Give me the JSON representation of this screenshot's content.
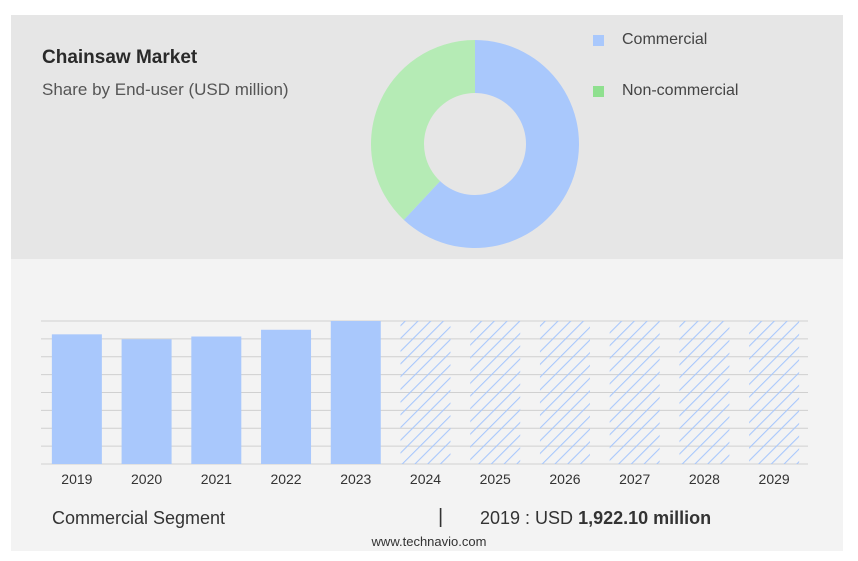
{
  "header": {
    "title": "Chainsaw Market",
    "subtitle": "Share by End-user (USD million)"
  },
  "colors": {
    "commercial": "#a9c8fc",
    "non_commercial": "#b5ebb5",
    "forecast_hatch": "#a9c8fc",
    "grid": "#d0d0d0"
  },
  "legend": [
    {
      "label": "Commercial",
      "color": "#a9c8fc"
    },
    {
      "label": "Non-commercial",
      "color": "#8fe08f"
    }
  ],
  "summary": {
    "segment": "Commercial Segment",
    "separator": "|",
    "prefix": "2019 : USD ",
    "value": "1,922.10 million"
  },
  "footer": "www.technavio.com",
  "chart_data": [
    {
      "type": "pie",
      "donut": true,
      "categories": [
        "Commercial",
        "Non-commercial"
      ],
      "values": [
        62,
        38
      ]
    },
    {
      "type": "bar",
      "categories": [
        "2019",
        "2020",
        "2021",
        "2022",
        "2023",
        "2024",
        "2025",
        "2026",
        "2027",
        "2028",
        "2029"
      ],
      "values": [
        1922.1,
        1850,
        1890,
        1990,
        2120,
        null,
        null,
        null,
        null,
        null,
        null
      ],
      "forecast_from": "2024",
      "ylim": [
        0,
        2120
      ],
      "grid": true
    }
  ]
}
